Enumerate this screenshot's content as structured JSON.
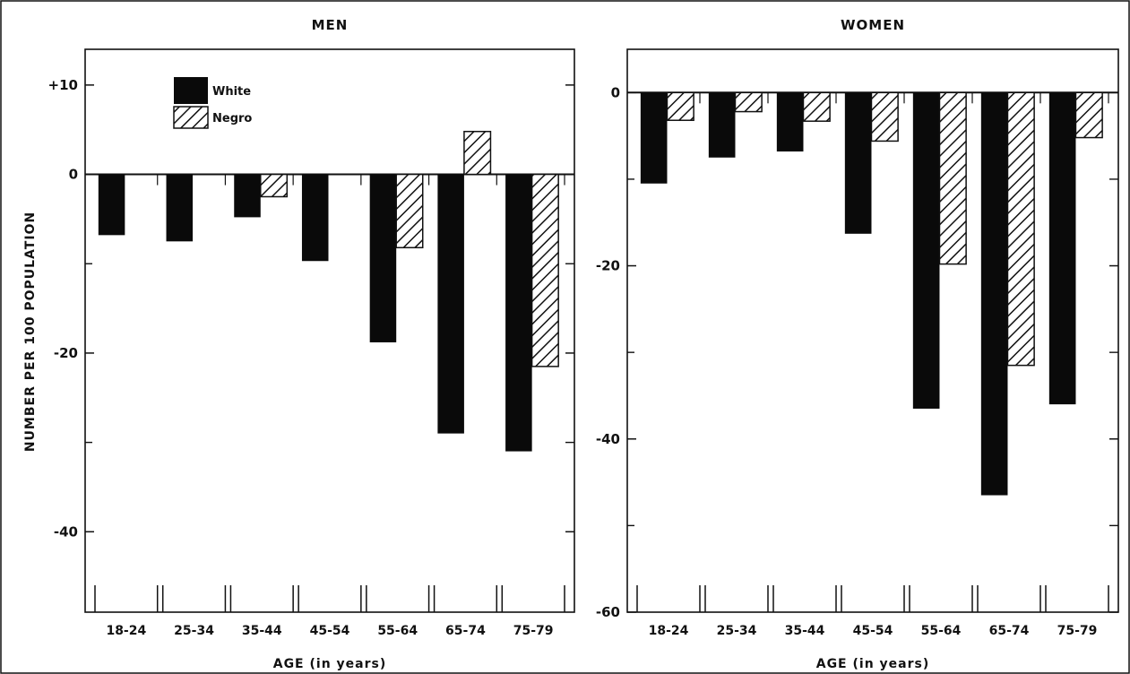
{
  "colors": {
    "white_bar": "#0a0a0a",
    "negro_hatch": "#111111",
    "frame": "#111111"
  },
  "ylabel": "NUMBER PER 100 POPULATION",
  "legend": {
    "placement": "upper-left of MEN panel",
    "white": "White",
    "negro": "Negro"
  },
  "chart_data": [
    {
      "type": "bar",
      "title": "MEN",
      "xlabel": "AGE (in years)",
      "ylabel": "NUMBER PER 100 POPULATION",
      "categories": [
        "18-24",
        "25-34",
        "35-44",
        "45-54",
        "55-64",
        "65-74",
        "75-79"
      ],
      "series": [
        {
          "name": "White",
          "values": [
            -6.8,
            -7.5,
            -4.8,
            -9.7,
            -18.8,
            -29.0,
            -31.0
          ]
        },
        {
          "name": "Negro",
          "values": [
            0,
            0,
            -2.5,
            0,
            -8.2,
            4.8,
            -21.5
          ]
        }
      ],
      "ylim": [
        -49,
        14
      ],
      "yticks": [
        10,
        0,
        -20,
        -40
      ],
      "ytick_labels": [
        "+10",
        "0",
        "-20",
        "-40"
      ],
      "grid": false
    },
    {
      "type": "bar",
      "title": "WOMEN",
      "xlabel": "AGE (in years)",
      "ylabel": "NUMBER PER 100 POPULATION",
      "categories": [
        "18-24",
        "25-34",
        "35-44",
        "45-54",
        "55-64",
        "65-74",
        "75-79"
      ],
      "series": [
        {
          "name": "White",
          "values": [
            -10.5,
            -7.5,
            -6.8,
            -16.3,
            -36.5,
            -46.5,
            -36.0
          ]
        },
        {
          "name": "Negro",
          "values": [
            -3.2,
            -2.2,
            -3.3,
            -5.6,
            -19.8,
            -31.5,
            -5.2
          ]
        }
      ],
      "ylim": [
        -60,
        5
      ],
      "yticks": [
        0,
        -20,
        -40,
        -60
      ],
      "ytick_labels": [
        "0",
        "-20",
        "-40",
        "-60"
      ],
      "grid": false
    }
  ]
}
